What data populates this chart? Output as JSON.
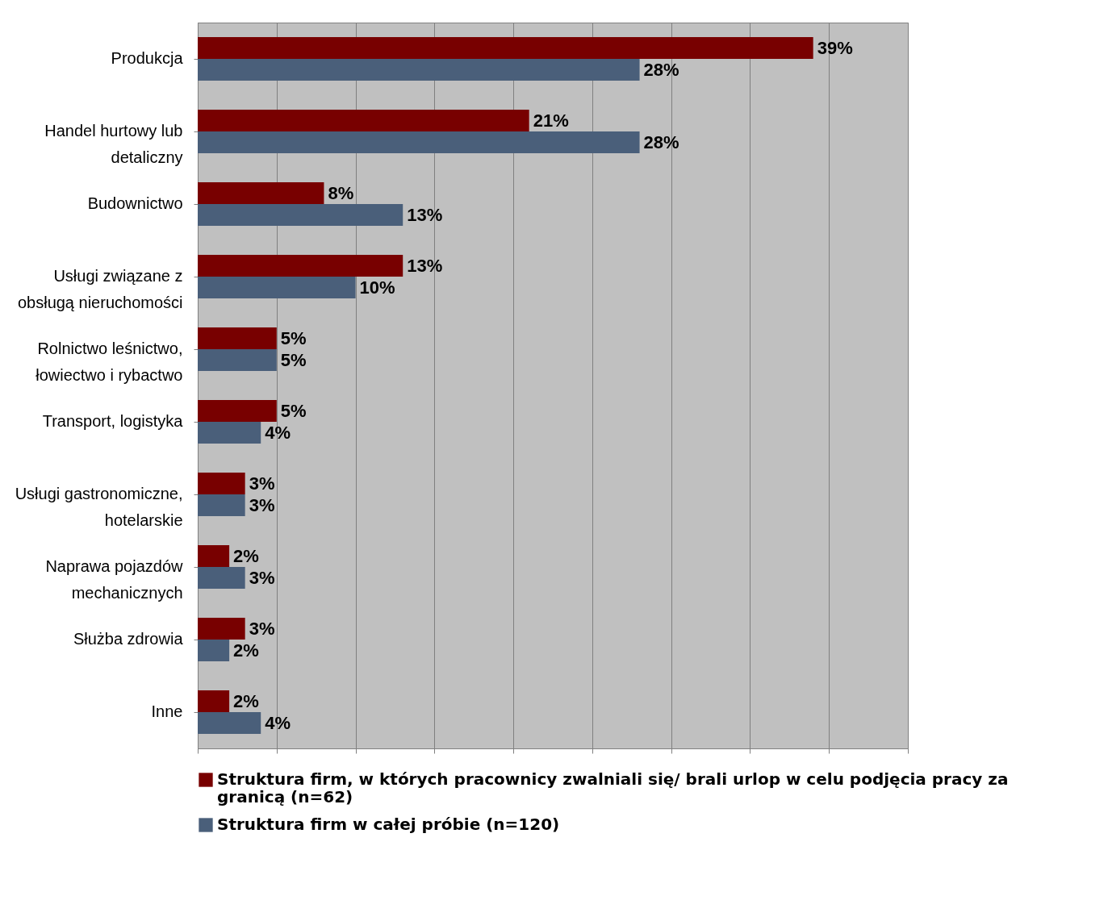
{
  "chart_data": {
    "type": "bar",
    "orientation": "horizontal",
    "categories": [
      "Produkcja",
      "Handel hurtowy lub detaliczny",
      "Budownictwo",
      "Usługi związane z obsługą nieruchomości",
      "Rolnictwo leśnictwo, łowiectwo i rybactwo",
      "Transport, logistyka",
      "Usługi gastronomiczne, hotelarskie",
      "Naprawa pojazdów mechanicznych",
      "Służba zdrowia",
      "Inne"
    ],
    "series": [
      {
        "name": "Struktura firm, w których pracownicy zwalniali się/ brali urlop w celu podjęcia pracy za granicą (n=62)",
        "color": "#780000",
        "values": [
          39,
          21,
          8,
          13,
          5,
          5,
          3,
          2,
          3,
          2
        ],
        "value_labels": [
          "39%",
          "21%",
          "8%",
          "13%",
          "5%",
          "5%",
          "3%",
          "2%",
          "3%",
          "2%"
        ]
      },
      {
        "name": "Struktura firm w całej próbie (n=120)",
        "color": "#4a5f7a",
        "values": [
          28,
          28,
          13,
          10,
          5,
          4,
          3,
          3,
          2,
          4
        ],
        "value_labels": [
          "28%",
          "28%",
          "13%",
          "10%",
          "5%",
          "4%",
          "3%",
          "3%",
          "2%",
          "4%"
        ]
      }
    ],
    "xlim": [
      0,
      45
    ],
    "xticks": [
      {
        "value": 0,
        "label": null
      },
      {
        "value": 5,
        "label": null
      },
      {
        "value": 10,
        "label": null
      },
      {
        "value": 15,
        "label": null
      },
      {
        "value": 20,
        "label": null
      },
      {
        "value": 25,
        "label": null
      },
      {
        "value": 30,
        "label": null
      },
      {
        "value": 35,
        "label": null
      },
      {
        "value": 40,
        "label": null
      },
      {
        "value": 45,
        "label": null
      }
    ],
    "tick_labels": "y",
    "grid": "x",
    "legend": "bottom"
  }
}
